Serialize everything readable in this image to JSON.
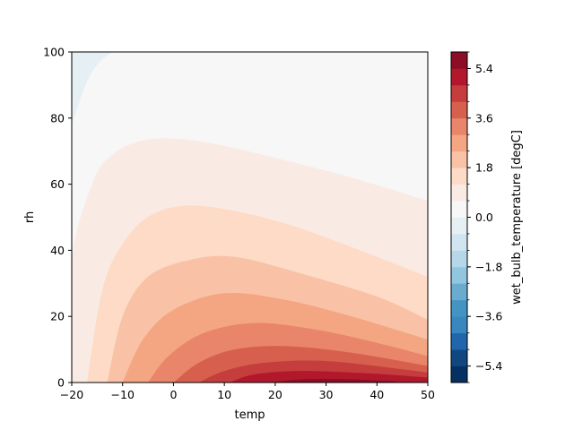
{
  "chart_data": {
    "type": "heatmap",
    "subtype": "filled-contour",
    "title": "",
    "xlabel": "temp",
    "ylabel": "rh",
    "colorbar_label": "wet_bulb_temperature [degC]",
    "xlim": [
      -20,
      50
    ],
    "ylim": [
      0,
      100
    ],
    "x_ticks": [
      -20,
      -10,
      0,
      10,
      20,
      30,
      40,
      50
    ],
    "x_tick_labels": [
      "−20",
      "−10",
      "0",
      "10",
      "20",
      "30",
      "40",
      "50"
    ],
    "y_ticks": [
      0,
      20,
      40,
      60,
      80,
      100
    ],
    "y_tick_labels": [
      "0",
      "20",
      "40",
      "60",
      "80",
      "100"
    ],
    "colorbar_range": [
      -6.0,
      6.0
    ],
    "colorbar_ticks": [
      -5.4,
      -3.6,
      -1.8,
      0.0,
      1.8,
      3.6,
      5.4
    ],
    "colorbar_tick_labels": [
      "−5.4",
      "−3.6",
      "−1.8",
      "0.0",
      "1.8",
      "3.6",
      "5.4"
    ],
    "colorbar_levels": [
      -6.0,
      -5.4,
      -4.8,
      -4.2,
      -3.6,
      -3.0,
      -2.4,
      -1.8,
      -1.2,
      -0.6,
      0.0,
      0.6,
      1.2,
      1.8,
      2.4,
      3.0,
      3.6,
      4.2,
      4.8,
      5.4,
      6.0
    ],
    "colormap": "RdBu_r",
    "band_colors": [
      "#053061",
      "#114781",
      "#2166ac",
      "#3a87bf",
      "#4393c3",
      "#6aacd0",
      "#92c5de",
      "#b5d7e8",
      "#d1e5f0",
      "#e6eff4",
      "#f7f7f7",
      "#f9ebe4",
      "#fddbc7",
      "#f9c1a5",
      "#f4a582",
      "#e8856b",
      "#d6604d",
      "#c53e3d",
      "#b2182b",
      "#8c0d25",
      "#67001f"
    ],
    "contours": [
      {
        "level_range": [
          0.0,
          0.6
        ],
        "boundary": [
          [
            -20,
            78
          ],
          [
            -17,
            91
          ],
          [
            -14.5,
            97
          ],
          [
            -12,
            100
          ]
        ]
      },
      {
        "level_range": [
          0.6,
          1.2
        ],
        "boundary": [
          [
            -20,
            0
          ],
          [
            -20,
            37
          ],
          [
            -16,
            60
          ],
          [
            -12,
            69
          ],
          [
            -5,
            73.5
          ],
          [
            5,
            73
          ],
          [
            20,
            68
          ],
          [
            35,
            62
          ],
          [
            50,
            55
          ]
        ]
      },
      {
        "level_range": [
          1.2,
          1.8
        ],
        "boundary": [
          [
            -17,
            0
          ],
          [
            -14,
            28
          ],
          [
            -10,
            42
          ],
          [
            -4,
            51
          ],
          [
            5,
            53.5
          ],
          [
            20,
            49
          ],
          [
            35,
            41
          ],
          [
            50,
            32
          ]
        ]
      },
      {
        "level_range": [
          1.8,
          2.4
        ],
        "boundary": [
          [
            -13,
            0
          ],
          [
            -10,
            20
          ],
          [
            -5,
            32
          ],
          [
            3,
            37
          ],
          [
            12,
            38
          ],
          [
            25,
            33
          ],
          [
            40,
            26
          ],
          [
            50,
            19
          ]
        ]
      },
      {
        "level_range": [
          2.4,
          3.0
        ],
        "boundary": [
          [
            -10,
            0
          ],
          [
            -6,
            13
          ],
          [
            0,
            22
          ],
          [
            10,
            27
          ],
          [
            22,
            25
          ],
          [
            35,
            20
          ],
          [
            50,
            13
          ]
        ]
      },
      {
        "level_range": [
          3.0,
          3.6
        ],
        "boundary": [
          [
            -5,
            0
          ],
          [
            -1,
            8
          ],
          [
            6,
            15
          ],
          [
            16,
            18
          ],
          [
            28,
            16
          ],
          [
            40,
            12
          ],
          [
            50,
            8
          ]
        ]
      },
      {
        "level_range": [
          3.6,
          4.2
        ],
        "boundary": [
          [
            0,
            0
          ],
          [
            5,
            6
          ],
          [
            12,
            10
          ],
          [
            22,
            11
          ],
          [
            35,
            9
          ],
          [
            50,
            5
          ]
        ]
      },
      {
        "level_range": [
          4.2,
          4.8
        ],
        "boundary": [
          [
            5,
            0
          ],
          [
            10,
            3.5
          ],
          [
            18,
            6
          ],
          [
            30,
            6.5
          ],
          [
            45,
            4
          ],
          [
            50,
            3
          ]
        ]
      },
      {
        "level_range": [
          4.8,
          5.4
        ],
        "boundary": [
          [
            11,
            0
          ],
          [
            16,
            2.5
          ],
          [
            25,
            3.5
          ],
          [
            38,
            2.8
          ],
          [
            50,
            1.5
          ]
        ]
      },
      {
        "level_range": [
          5.4,
          6.0
        ],
        "boundary": [
          [
            19,
            0
          ],
          [
            26,
            1
          ],
          [
            34,
            1
          ],
          [
            44,
            0.3
          ]
        ]
      }
    ]
  }
}
